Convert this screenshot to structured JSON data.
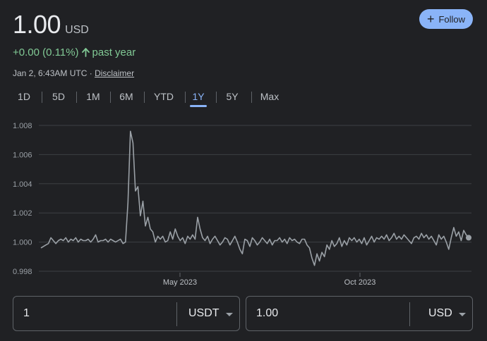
{
  "header": {
    "price": "1.00",
    "currency": "USD",
    "follow_label": "Follow"
  },
  "change": {
    "text": "+0.00 (0.11%)",
    "direction_icon": "arrow-up-icon",
    "period": "past year",
    "color": "#81c995"
  },
  "meta": {
    "timestamp": "Jan 2, 6:43AM UTC",
    "separator": "·",
    "disclaimer": "Disclaimer"
  },
  "tabs": [
    {
      "label": "1D",
      "active": false
    },
    {
      "label": "5D",
      "active": false
    },
    {
      "label": "1M",
      "active": false
    },
    {
      "label": "6M",
      "active": false
    },
    {
      "label": "YTD",
      "active": false
    },
    {
      "label": "1Y",
      "active": true
    },
    {
      "label": "5Y",
      "active": false
    },
    {
      "label": "Max",
      "active": false
    }
  ],
  "chart_data": {
    "type": "line",
    "series_color": "#9aa0a6",
    "ylim": [
      0.998,
      1.008
    ],
    "y_ticks": [
      "1.008",
      "1.006",
      "1.004",
      "1.002",
      "1.000",
      "0.998"
    ],
    "x_ticks": [
      "May 2023",
      "Oct 2023"
    ],
    "grid": true,
    "values": [
      0.9996,
      0.9997,
      0.9998,
      0.9999,
      1.0003,
      1.0001,
      0.9999,
      1.0001,
      1.0002,
      1.0001,
      1.0003,
      1.0,
      1.0002,
      1.0001,
      1.0003,
      1.0,
      1.0002,
      1.0001,
      1.0001,
      1.0002,
      1.0,
      1.0002,
      1.0005,
      1.0,
      1.0001,
      1.0001,
      1.0002,
      1.0,
      1.0002,
      1.0001,
      1.0,
      1.0001,
      1.0002,
      0.9999,
      1.0,
      1.0027,
      1.0076,
      1.0068,
      1.0035,
      1.0038,
      1.0018,
      1.0028,
      1.0011,
      1.0017,
      1.0009,
      1.0007,
      1.0,
      1.0004,
      1.0002,
      1.0004,
      1.0,
      1.0001,
      1.0007,
      1.0002,
      1.0009,
      1.0004,
      1.0001,
      1.0003,
      0.9999,
      1.0004,
      1.0002,
      1.0005,
      1.0002,
      1.0017,
      1.0009,
      1.0003,
      1.0001,
      1.0004,
      0.9999,
      1.0002,
      1.0004,
      1.0001,
      0.9998,
      1.0,
      1.0003,
      1.0002,
      0.9998,
      1.0001,
      1.0004,
      1.0,
      0.9995,
      0.9992,
      1.0002,
      1.0001,
      0.9997,
      1.0003,
      1.0001,
      0.9998,
      1.0,
      1.0003,
      1.0001,
      0.9999,
      1.0002,
      0.9998,
      1.0001,
      1.0001,
      1.0003,
      1.0,
      1.0002,
      0.9999,
      1.0003,
      1.0001,
      1.0002,
      1.0,
      0.9999,
      1.0002,
      1.0002,
      0.9998,
      0.9996,
      0.9989,
      0.9984,
      0.9992,
      0.9987,
      0.9993,
      0.999,
      0.9998,
      0.9995,
      1.0001,
      0.9997,
      0.9999,
      1.0003,
      0.9997,
      1.0001,
      0.9998,
      1.0003,
      1.0001,
      1.0003,
      1.0,
      1.0002,
      0.9999,
      1.0003,
      0.9998,
      1.0001,
      1.0004,
      1.0,
      1.0003,
      1.0002,
      1.0004,
      1.0002,
      1.0005,
      1.0001,
      1.0003,
      1.0006,
      1.0002,
      1.0004,
      1.0002,
      1.0005,
      1.0003,
      1.0001,
      0.9999,
      1.0003,
      1.0004,
      1.0002,
      1.0006,
      1.0003,
      1.0005,
      1.0002,
      1.0004,
      1.0001,
      0.9998,
      1.0005,
      1.0002,
      1.0004,
      1.0,
      0.9995,
      1.0003,
      1.001,
      1.0004,
      1.0007,
      1.0001,
      1.0008,
      1.0005,
      1.0003
    ],
    "last_point_marker": true
  },
  "converter": {
    "from_value": "1",
    "from_currency": "USDT",
    "to_value": "1.00",
    "to_currency": "USD"
  }
}
